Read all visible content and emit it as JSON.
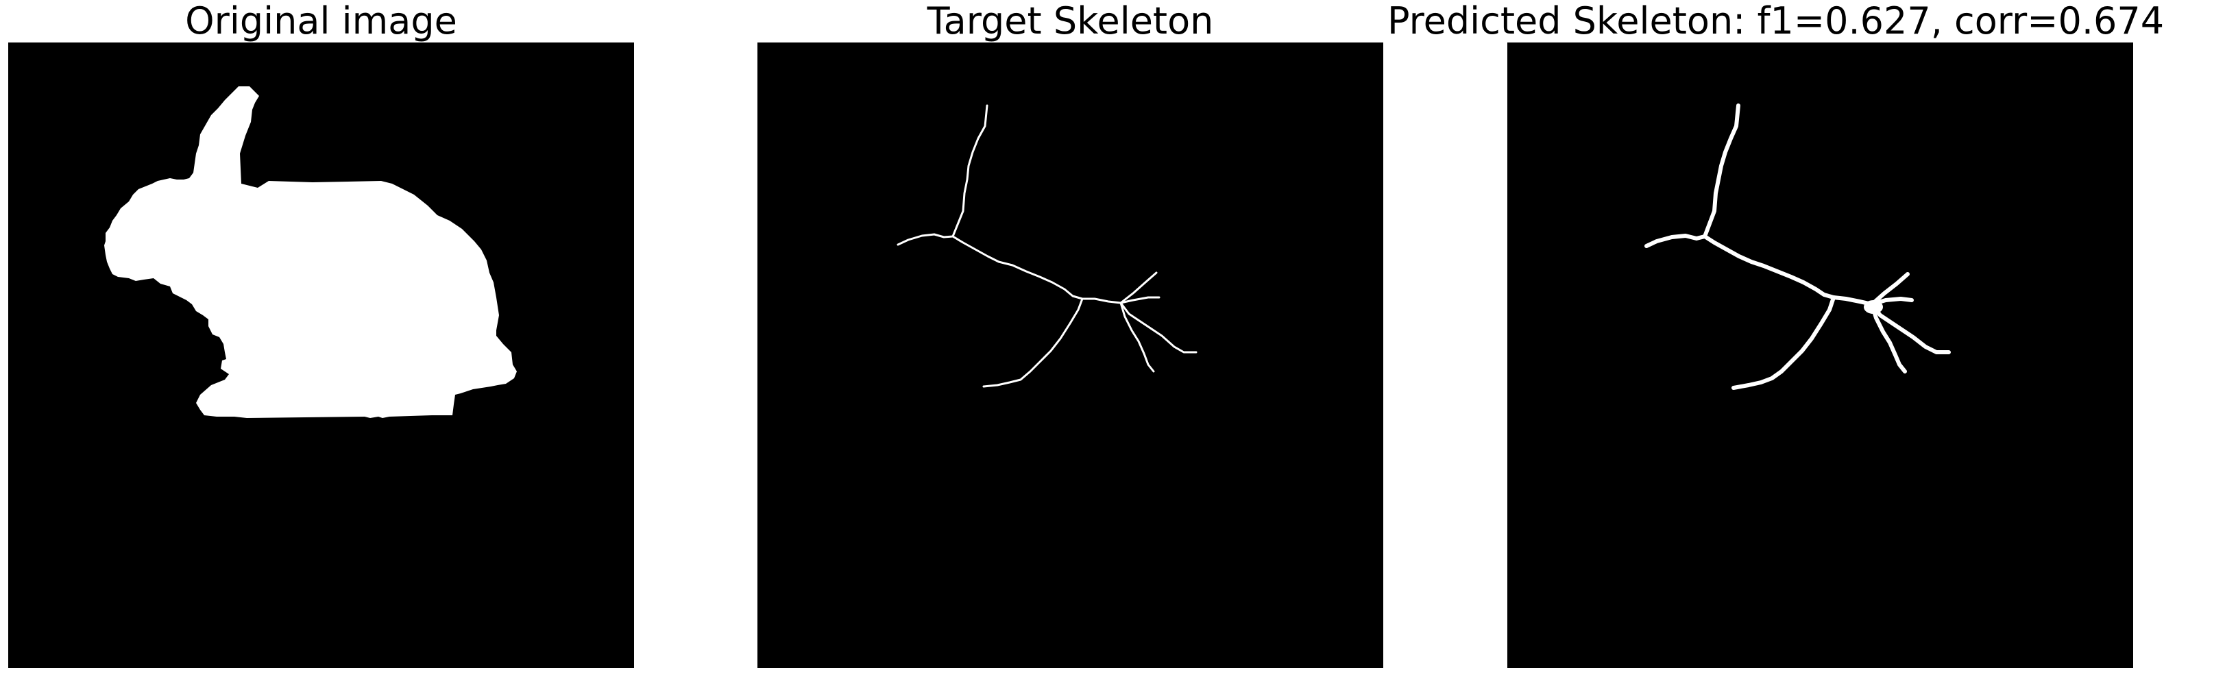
{
  "panels": [
    {
      "title": "Original image"
    },
    {
      "title": "Target Skeleton"
    },
    {
      "title": "Predicted Skeleton: f1=0.627, corr=0.674"
    }
  ],
  "colors": {
    "background": "#000000",
    "foreground": "#ffffff",
    "page": "#ffffff"
  }
}
